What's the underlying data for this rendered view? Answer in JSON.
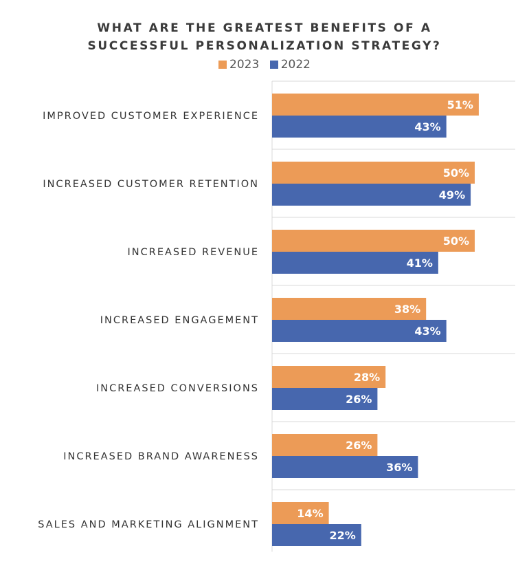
{
  "chart_data": {
    "type": "bar",
    "orientation": "horizontal",
    "title_lines": [
      "WHAT ARE THE GREATEST BENEFITS OF A",
      "SUCCESSFUL PERSONALIZATION STRATEGY?"
    ],
    "categories": [
      "IMPROVED CUSTOMER EXPERIENCE",
      "INCREASED CUSTOMER RETENTION",
      "INCREASED REVENUE",
      "INCREASED ENGAGEMENT",
      "INCREASED CONVERSIONS",
      "INCREASED BRAND AWARENESS",
      "SALES AND MARKETING ALIGNMENT"
    ],
    "series": [
      {
        "name": "2023",
        "color": "#EC9B57",
        "values": [
          51,
          50,
          50,
          38,
          28,
          26,
          14
        ]
      },
      {
        "name": "2022",
        "color": "#4767AE",
        "values": [
          43,
          49,
          41,
          43,
          26,
          36,
          22
        ]
      }
    ],
    "value_suffix": "%",
    "xlim": [
      0,
      60
    ],
    "grid": true,
    "legend_position": "top"
  }
}
